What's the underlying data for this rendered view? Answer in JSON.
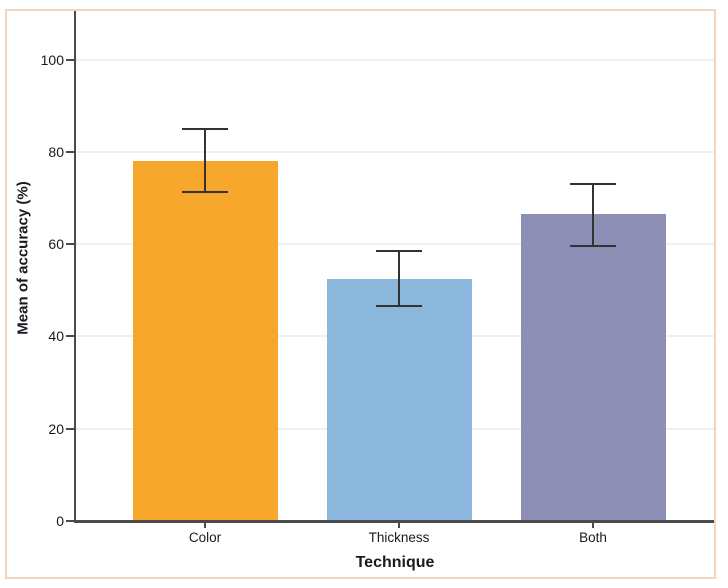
{
  "chart_data": {
    "type": "bar",
    "title": "",
    "xlabel": "Technique",
    "ylabel": "Mean of accuracy (%)",
    "categories": [
      "Color",
      "Thickness",
      "Both"
    ],
    "values": [
      77.9,
      52.5,
      66.5
    ],
    "error_low": [
      71.2,
      46.6,
      59.6
    ],
    "error_high": [
      84.9,
      58.6,
      73.1
    ],
    "bar_colors": [
      "#F7A72B",
      "#8BB7DD",
      "#8C8EB5"
    ],
    "yticks": [
      0,
      20,
      40,
      60,
      80,
      100
    ],
    "ylim": [
      0,
      110.5
    ],
    "grid": "horizontal-light",
    "legend": "none",
    "frame_color": "#F2D3BC",
    "axis_color": "#4A4A4A",
    "grid_color": "#EFEFEF",
    "error_bar_color": "#333333",
    "text_color": "#1A1A22"
  }
}
